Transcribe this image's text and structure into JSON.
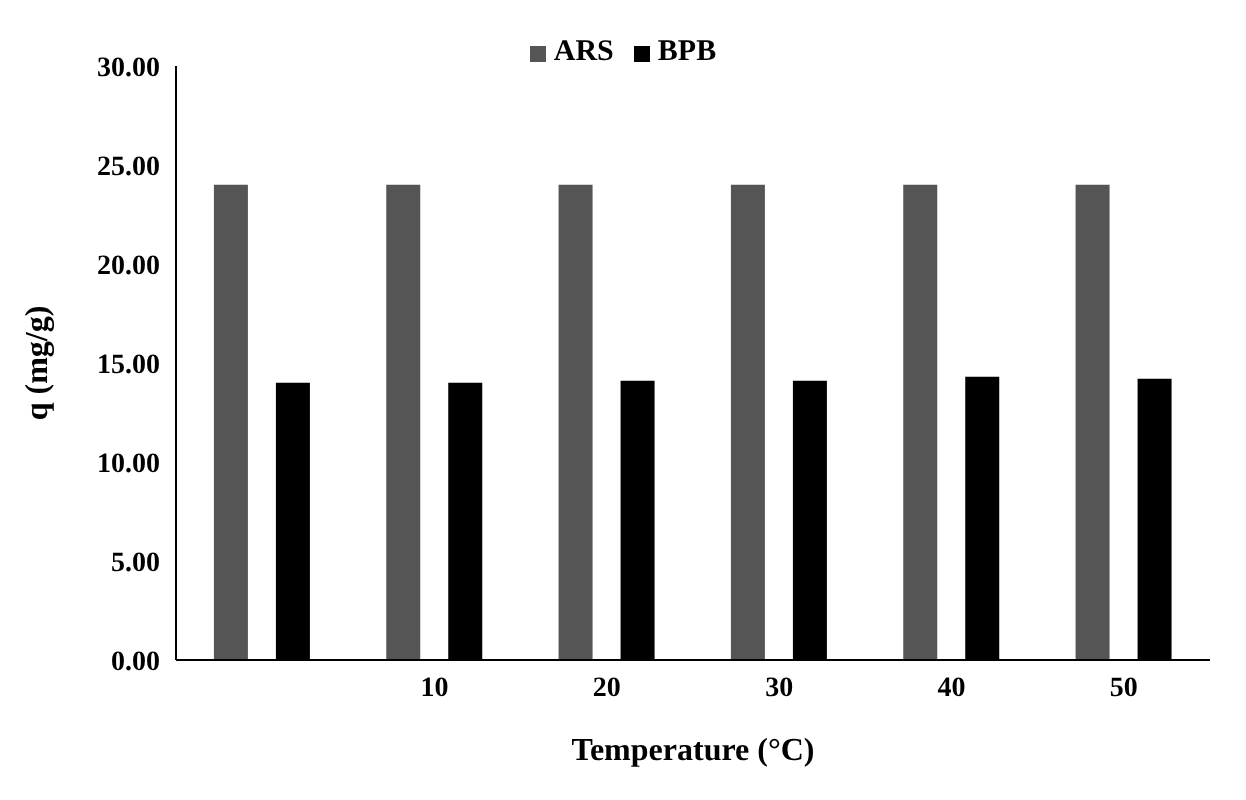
{
  "chart_data": {
    "type": "bar",
    "xlabel": "Temperature (°C)",
    "ylabel": "q (mg/g)",
    "categories": [
      null,
      "10",
      "20",
      "30",
      "40",
      "50"
    ],
    "series": [
      {
        "name": "ARS",
        "color": "#555555",
        "values": [
          24.0,
          24.0,
          24.0,
          24.0,
          24.0,
          24.0
        ]
      },
      {
        "name": "BPB",
        "color": "#000000",
        "values": [
          14.0,
          14.0,
          14.1,
          14.1,
          14.3,
          14.2
        ]
      }
    ],
    "ylim": [
      0,
      30
    ],
    "yticks": [
      {
        "value": 0,
        "label": "0.00"
      },
      {
        "value": 5,
        "label": "5.00"
      },
      {
        "value": 10,
        "label": "10.00"
      },
      {
        "value": 15,
        "label": "15.00"
      },
      {
        "value": 20,
        "label": "20.00"
      },
      {
        "value": 25,
        "label": "25.00"
      },
      {
        "value": 30,
        "label": "30.00"
      }
    ],
    "grid": false,
    "legend": "top"
  }
}
